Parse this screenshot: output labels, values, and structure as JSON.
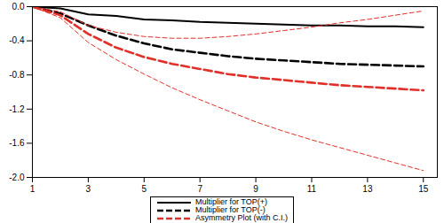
{
  "chart_data": {
    "type": "line",
    "x": [
      1,
      2,
      3,
      4,
      5,
      6,
      7,
      8,
      9,
      10,
      11,
      12,
      13,
      14,
      15
    ],
    "xlim": [
      1,
      15.5
    ],
    "xticks": [
      1,
      3,
      5,
      7,
      9,
      11,
      13,
      15
    ],
    "ylim": [
      -2.0,
      0.0
    ],
    "yticks": [
      {
        "value": -2.0,
        "label": "-2.0"
      },
      {
        "value": -1.6,
        "label": "-1.6"
      },
      {
        "value": -1.2,
        "label": "-1.2"
      },
      {
        "value": -0.8,
        "label": "-0.8"
      },
      {
        "value": -0.4,
        "label": "-0.4"
      },
      {
        "value": 0.0,
        "label": "0.0"
      }
    ],
    "grid": false,
    "legend": "bottom",
    "series": [
      {
        "name": "Multiplier for TOP(+)",
        "color": "#000000",
        "line_style": "solid",
        "values": [
          0,
          -0.02,
          -0.09,
          -0.11,
          -0.15,
          -0.16,
          -0.18,
          -0.19,
          -0.2,
          -0.21,
          -0.22,
          -0.22,
          -0.23,
          -0.23,
          -0.24
        ]
      },
      {
        "name": "Multiplier for TOP(-)",
        "color": "#000000",
        "line_style": "dashed",
        "values": [
          0,
          -0.08,
          -0.22,
          -0.34,
          -0.43,
          -0.5,
          -0.54,
          -0.58,
          -0.61,
          -0.63,
          -0.65,
          -0.67,
          -0.68,
          -0.69,
          -0.7
        ]
      },
      {
        "name": "Asymmetry Plot (with C.I.)",
        "color": "#e0302a",
        "line_style": "dashed",
        "values": [
          0,
          -0.1,
          -0.32,
          -0.48,
          -0.59,
          -0.67,
          -0.73,
          -0.79,
          -0.83,
          -0.86,
          -0.89,
          -0.92,
          -0.94,
          -0.96,
          -0.98
        ],
        "ci_upper": [
          0,
          -0.06,
          -0.22,
          -0.3,
          -0.35,
          -0.37,
          -0.37,
          -0.35,
          -0.32,
          -0.28,
          -0.24,
          -0.19,
          -0.15,
          -0.1,
          -0.05
        ],
        "ci_lower": [
          0,
          -0.13,
          -0.42,
          -0.62,
          -0.79,
          -0.95,
          -1.09,
          -1.22,
          -1.35,
          -1.46,
          -1.56,
          -1.65,
          -1.74,
          -1.83,
          -1.92
        ]
      }
    ]
  }
}
